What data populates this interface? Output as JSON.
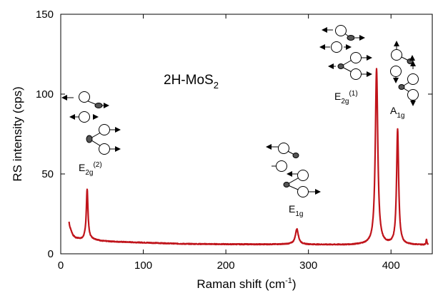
{
  "chart_data": {
    "type": "line",
    "title": "",
    "xlabel": "Raman shift (cm",
    "xlabel_sup": "-1",
    "xlabel_close": ")",
    "ylabel": "RS intensity (cps)",
    "xlim": [
      0,
      450
    ],
    "ylim": [
      0,
      150
    ],
    "x_ticks": [
      0,
      100,
      200,
      300,
      400
    ],
    "y_ticks": [
      0,
      50,
      100,
      150
    ],
    "grid": false,
    "line_color": "#c0141b",
    "series": [
      {
        "baseline_points": [
          [
            10,
            20
          ],
          [
            11,
            17
          ],
          [
            13,
            14
          ],
          [
            15,
            11.5
          ],
          [
            18,
            10
          ],
          [
            22,
            9.5
          ],
          [
            26,
            9
          ],
          [
            30,
            10
          ],
          [
            50,
            8
          ],
          [
            70,
            7.5
          ],
          [
            100,
            7
          ],
          [
            150,
            6.2
          ],
          [
            200,
            6
          ],
          [
            250,
            5.9
          ],
          [
            280,
            6
          ],
          [
            300,
            5.8
          ],
          [
            350,
            5.6
          ],
          [
            370,
            5.8
          ],
          [
            410,
            5.6
          ],
          [
            445,
            5.5
          ]
        ],
        "peaks": [
          {
            "x": 32,
            "height": 40.5,
            "width": 1.2
          },
          {
            "x": 286,
            "height": 15.5,
            "width": 2.2
          },
          {
            "x": 382.5,
            "height": 115.5,
            "width": 1.8
          },
          {
            "x": 408,
            "height": 77.5,
            "width": 1.5
          },
          {
            "x": 443,
            "height": 9,
            "width": 0.6
          }
        ]
      }
    ],
    "annotations": {
      "compound": {
        "text": "2H-MoS",
        "sub": "2"
      },
      "modes": [
        {
          "id": "e2g2",
          "base": "E",
          "sub": "2g",
          "sup": "(2)"
        },
        {
          "id": "e1g",
          "base": "E",
          "sub": "1g",
          "sup": ""
        },
        {
          "id": "e2g1",
          "base": "E",
          "sub": "2g",
          "sup": "(1)"
        },
        {
          "id": "a1g",
          "base": "A",
          "sub": "1g",
          "sup": ""
        }
      ]
    },
    "icons": [
      "vibration-mode-e2g2-icon",
      "vibration-mode-e1g-icon",
      "vibration-mode-e2g1-icon",
      "vibration-mode-a1g-icon"
    ]
  }
}
